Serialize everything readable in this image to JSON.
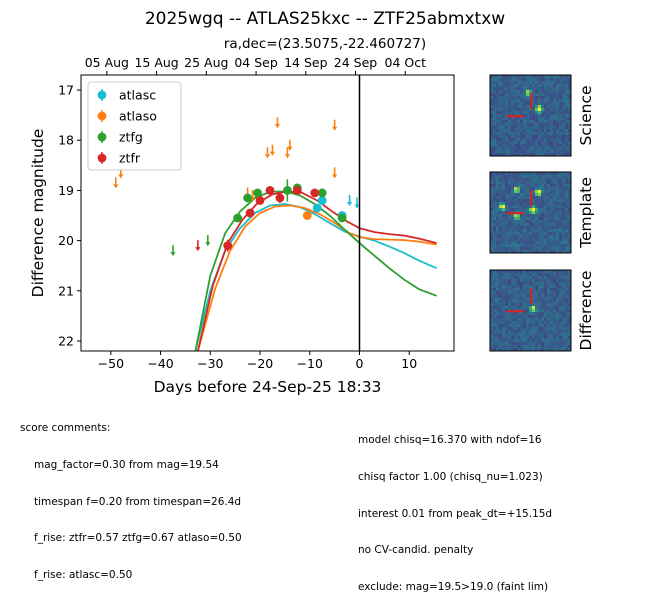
{
  "title": "2025wgq -- ATLAS25kxc -- ZTF25abmxtxw",
  "radec": "ra,dec=(23.5075,-22.460727)",
  "chart_data": {
    "type": "scatter",
    "xlabel": "Days before 24-Sep-25 18:33",
    "ylabel": "Difference magnitude",
    "xlim": [
      -56,
      19
    ],
    "ylim": [
      22.2,
      16.7
    ],
    "y_inverted": true,
    "x_ticks": [
      -50,
      -40,
      -30,
      -20,
      -10,
      0,
      10
    ],
    "y_ticks": [
      17,
      18,
      19,
      20,
      21,
      22
    ],
    "top_ticks": [
      {
        "label": "05 Aug",
        "x": -50.8
      },
      {
        "label": "15 Aug",
        "x": -40.8
      },
      {
        "label": "25 Aug",
        "x": -30.8
      },
      {
        "label": "04 Sep",
        "x": -20.8
      },
      {
        "label": "14 Sep",
        "x": -10.8
      },
      {
        "label": "24 Sep",
        "x": -0.8
      },
      {
        "label": "04 Oct",
        "x": 9.2
      }
    ],
    "vline_x": 0,
    "legend_loc": "upper left",
    "series": [
      {
        "name": "atlasc",
        "color": "#17becf",
        "points": [
          {
            "x": -8.5,
            "y": 19.35,
            "err": 0.08
          },
          {
            "x": -7.5,
            "y": 19.2,
            "err": 0.06
          },
          {
            "x": -3.5,
            "y": 19.5,
            "err": 0.07
          }
        ],
        "limits": [
          {
            "x": -2,
            "y": 19.25
          },
          {
            "x": -0.5,
            "y": 19.3
          }
        ],
        "curve": [
          [
            -33,
            22.2
          ],
          [
            -30,
            21.0
          ],
          [
            -27,
            20.2
          ],
          [
            -24,
            19.75
          ],
          [
            -21,
            19.45
          ],
          [
            -18,
            19.3
          ],
          [
            -15,
            19.27
          ],
          [
            -12,
            19.33
          ],
          [
            -9,
            19.47
          ],
          [
            -6,
            19.65
          ],
          [
            -3,
            19.82
          ],
          [
            0,
            19.92
          ],
          [
            3,
            20.0
          ],
          [
            6,
            20.12
          ],
          [
            9,
            20.25
          ],
          [
            12,
            20.4
          ],
          [
            15.5,
            20.55
          ]
        ]
      },
      {
        "name": "atlaso",
        "color": "#ff7f0e",
        "points": [
          {
            "x": -10.5,
            "y": 19.5,
            "err": 0.06
          }
        ],
        "limits": [
          {
            "x": -49,
            "y": 18.9
          },
          {
            "x": -48,
            "y": 18.7
          },
          {
            "x": -22.5,
            "y": 19.1
          },
          {
            "x": -21.5,
            "y": 19.15
          },
          {
            "x": -18.5,
            "y": 18.3
          },
          {
            "x": -17.5,
            "y": 18.25
          },
          {
            "x": -16.5,
            "y": 17.7
          },
          {
            "x": -14.5,
            "y": 18.3
          },
          {
            "x": -14,
            "y": 18.15
          },
          {
            "x": -5,
            "y": 17.75
          },
          {
            "x": -5,
            "y": 18.7
          }
        ],
        "curve": [
          [
            -32.5,
            22.2
          ],
          [
            -29,
            20.95
          ],
          [
            -26,
            20.2
          ],
          [
            -23,
            19.72
          ],
          [
            -20,
            19.45
          ],
          [
            -17,
            19.32
          ],
          [
            -14,
            19.3
          ],
          [
            -11,
            19.35
          ],
          [
            -8,
            19.47
          ],
          [
            -5,
            19.65
          ],
          [
            -2,
            19.85
          ],
          [
            0,
            19.93
          ],
          [
            3,
            19.97
          ],
          [
            6,
            19.98
          ],
          [
            9,
            19.99
          ],
          [
            12,
            20.02
          ],
          [
            15.5,
            20.08
          ]
        ]
      },
      {
        "name": "ztfg",
        "color": "#2ca02c",
        "points": [
          {
            "x": -24.5,
            "y": 19.55,
            "err": 0.08
          },
          {
            "x": -22.5,
            "y": 19.15,
            "err": 0.06
          },
          {
            "x": -20.5,
            "y": 19.05,
            "err": 0.06
          },
          {
            "x": -14.5,
            "y": 19.0,
            "err": 0.22
          },
          {
            "x": -12.5,
            "y": 18.95,
            "err": 0.08
          },
          {
            "x": -7.5,
            "y": 19.05,
            "err": 0.07
          },
          {
            "x": -3.5,
            "y": 19.55,
            "err": 0.07
          }
        ],
        "limits": [
          {
            "x": -37.5,
            "y": 20.25
          },
          {
            "x": -30.5,
            "y": 20.05
          }
        ],
        "curve": [
          [
            -33,
            22.2
          ],
          [
            -30,
            20.7
          ],
          [
            -27,
            19.85
          ],
          [
            -24,
            19.42
          ],
          [
            -21,
            19.15
          ],
          [
            -18,
            19.03
          ],
          [
            -15,
            19.02
          ],
          [
            -12,
            19.1
          ],
          [
            -9,
            19.27
          ],
          [
            -6,
            19.5
          ],
          [
            -3,
            19.78
          ],
          [
            0,
            20.05
          ],
          [
            3,
            20.3
          ],
          [
            6,
            20.55
          ],
          [
            9,
            20.78
          ],
          [
            12,
            20.97
          ],
          [
            15.5,
            21.1
          ]
        ]
      },
      {
        "name": "ztfr",
        "color": "#d62728",
        "points": [
          {
            "x": -26.5,
            "y": 20.1,
            "err": 0.12
          },
          {
            "x": -22,
            "y": 19.45,
            "err": 0.08
          },
          {
            "x": -20,
            "y": 19.2,
            "err": 0.07
          },
          {
            "x": -18,
            "y": 19.0,
            "err": 0.08
          },
          {
            "x": -16,
            "y": 19.15,
            "err": 0.1
          },
          {
            "x": -12.5,
            "y": 19.0,
            "err": 0.07
          },
          {
            "x": -9,
            "y": 19.05,
            "err": 0.06
          }
        ],
        "limits": [
          {
            "x": -32.5,
            "y": 20.15
          }
        ],
        "curve": [
          [
            -32.5,
            22.2
          ],
          [
            -29.5,
            20.9
          ],
          [
            -26.5,
            20.05
          ],
          [
            -23.5,
            19.58
          ],
          [
            -20.5,
            19.25
          ],
          [
            -17.5,
            19.08
          ],
          [
            -14.5,
            19.02
          ],
          [
            -11.5,
            19.05
          ],
          [
            -8.5,
            19.2
          ],
          [
            -5.5,
            19.42
          ],
          [
            -2.5,
            19.62
          ],
          [
            0,
            19.75
          ],
          [
            3,
            19.83
          ],
          [
            6,
            19.87
          ],
          [
            9,
            19.9
          ],
          [
            12,
            19.96
          ],
          [
            15.5,
            20.05
          ]
        ]
      }
    ]
  },
  "stamps": [
    {
      "label": "Science",
      "srcs": [
        [
          0.47,
          0.22,
          1.0
        ],
        [
          0.61,
          0.42,
          1.6
        ]
      ]
    },
    {
      "label": "Template",
      "srcs": [
        [
          0.6,
          0.25,
          1.3
        ],
        [
          0.33,
          0.22,
          1.0
        ],
        [
          0.15,
          0.43,
          1.2
        ],
        [
          0.33,
          0.55,
          1.0
        ],
        [
          0.53,
          0.47,
          1.6
        ]
      ]
    },
    {
      "label": "Difference",
      "srcs": [
        [
          0.53,
          0.48,
          1.0
        ]
      ]
    }
  ],
  "comments_left": [
    "score comments:",
    "mag_factor=0.30 from mag=19.54",
    "timespan f=0.20 from timespan=26.4d",
    "f_rise: ztfr=0.57 ztfg=0.67 atlaso=0.50",
    "f_rise: atlasc=0.50"
  ],
  "comments_right": [
    "model chisq=16.370 with ndof=16",
    "chisq factor 1.00 (chisq_nu=1.023)",
    "interest 0.01 from peak_dt=+15.15d",
    "no CV-candid. penalty",
    "exclude: mag=19.5>19.0 (faint lim)"
  ]
}
